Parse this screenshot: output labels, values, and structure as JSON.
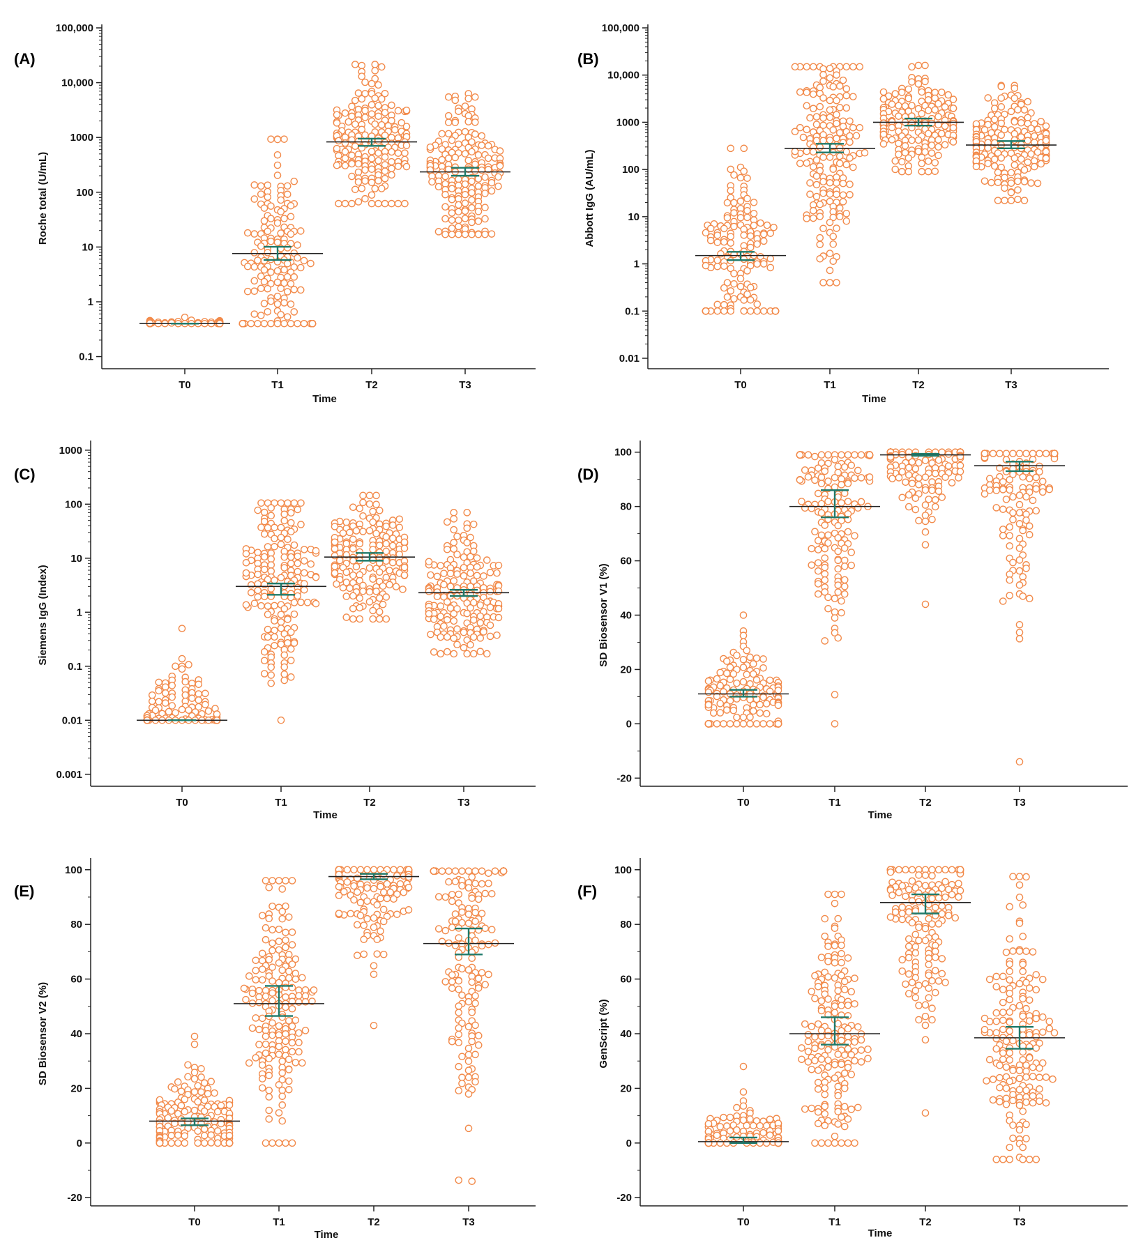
{
  "colors": {
    "point": "#f28a4a",
    "median": "#222222",
    "ci": "#1f7a6a",
    "axis": "#222222"
  },
  "chart_data": [
    {
      "panel": "(A)",
      "type": "scatter",
      "scale": "log",
      "ylabel": "Roche total (U/mL)",
      "xlabel": "Time",
      "categories": [
        "T0",
        "T1",
        "T2",
        "T3"
      ],
      "ylim": [
        0.06,
        100000
      ],
      "yticks": [
        0.1,
        1,
        10,
        100,
        1000,
        10000,
        100000
      ],
      "ytick_labels": [
        "0.1",
        "1",
        "10",
        "100",
        "1000",
        "10,000",
        "100,000"
      ],
      "groups": [
        {
          "category": "T0",
          "median": 0.4,
          "ci": [
            0.4,
            0.4
          ],
          "min": 0.4,
          "max": 0.52,
          "floor": 0.4
        },
        {
          "category": "T1",
          "median": 7.6,
          "ci": [
            5.8,
            10.1
          ],
          "min": 0.4,
          "max": 930,
          "floor": 0.4
        },
        {
          "category": "T2",
          "median": 830,
          "ci": [
            700,
            950
          ],
          "min": 62,
          "max": 21500,
          "floor": null
        },
        {
          "category": "T3",
          "median": 235,
          "ci": [
            200,
            280
          ],
          "min": 17,
          "max": 6300,
          "floor": null
        }
      ]
    },
    {
      "panel": "(B)",
      "type": "scatter",
      "scale": "log",
      "ylabel": "Abbott IgG (AU/mL)",
      "xlabel": "Time",
      "categories": [
        "T0",
        "T1",
        "T2",
        "T3"
      ],
      "ylim": [
        0.006,
        100000
      ],
      "yticks": [
        0.01,
        0.1,
        1,
        10,
        100,
        1000,
        10000,
        100000
      ],
      "ytick_labels": [
        "0.01",
        "0.1",
        "1",
        "10",
        "100",
        "1000",
        "10,000",
        "100,000"
      ],
      "groups": [
        {
          "category": "T0",
          "median": 1.5,
          "ci": [
            1.2,
            1.8
          ],
          "min": 0.1,
          "max": 280,
          "floor": 0.1
        },
        {
          "category": "T1",
          "median": 280,
          "ci": [
            230,
            350
          ],
          "min": 0.4,
          "max": 15000,
          "floor": null
        },
        {
          "category": "T2",
          "median": 1000,
          "ci": [
            850,
            1200
          ],
          "min": 90,
          "max": 16000,
          "floor": null
        },
        {
          "category": "T3",
          "median": 330,
          "ci": [
            280,
            400
          ],
          "min": 22,
          "max": 6000,
          "floor": null
        }
      ]
    },
    {
      "panel": "(C)",
      "type": "scatter",
      "scale": "log",
      "ylabel": "Siemens IgG (Index)",
      "xlabel": "Time",
      "categories": [
        "T0",
        "T1",
        "T2",
        "T3"
      ],
      "ylim": [
        0.0006,
        1300
      ],
      "yticks": [
        0.001,
        0.01,
        0.1,
        1,
        10,
        100,
        1000
      ],
      "ytick_labels": [
        "0.001",
        "0.01",
        "0.1",
        "1",
        "10",
        "100",
        "1000"
      ],
      "groups": [
        {
          "category": "T0",
          "median": 0.01,
          "ci": [
            0.01,
            0.01
          ],
          "min": 0.01,
          "max": 0.5,
          "floor": 0.01
        },
        {
          "category": "T1",
          "median": 3.0,
          "ci": [
            2.1,
            3.4
          ],
          "min": 0.01,
          "max": 105,
          "floor": null
        },
        {
          "category": "T2",
          "median": 10.5,
          "ci": [
            9.0,
            12.5
          ],
          "min": 0.75,
          "max": 145,
          "floor": null
        },
        {
          "category": "T3",
          "median": 2.3,
          "ci": [
            2.0,
            2.6
          ],
          "min": 0.17,
          "max": 70,
          "floor": null
        }
      ]
    },
    {
      "panel": "(D)",
      "type": "scatter",
      "scale": "linear",
      "ylabel": "SD Biosensor V1 (%)",
      "xlabel": "Time",
      "categories": [
        "T0",
        "T1",
        "T2",
        "T3"
      ],
      "ylim": [
        -23,
        103
      ],
      "yticks": [
        -20,
        0,
        20,
        40,
        60,
        80,
        100
      ],
      "ytick_labels": [
        "-20",
        "0",
        "20",
        "40",
        "60",
        "80",
        "100"
      ],
      "groups": [
        {
          "category": "T0",
          "median": 11,
          "ci": [
            10,
            12.5
          ],
          "min": 0,
          "max": 40,
          "floor": 0
        },
        {
          "category": "T1",
          "median": 80,
          "ci": [
            76,
            86
          ],
          "min": 0,
          "max": 99,
          "floor": null
        },
        {
          "category": "T2",
          "median": 99,
          "ci": [
            98.7,
            99.4
          ],
          "min": 44,
          "max": 100,
          "floor": null
        },
        {
          "category": "T3",
          "median": 95,
          "ci": [
            93,
            96.5
          ],
          "min": -14,
          "max": 99.5,
          "floor": null
        }
      ]
    },
    {
      "panel": "(E)",
      "type": "scatter",
      "scale": "linear",
      "ylabel": "SD Biosensor V2 (%)",
      "xlabel": "Time",
      "categories": [
        "T0",
        "T1",
        "T2",
        "T3"
      ],
      "ylim": [
        -23,
        103
      ],
      "yticks": [
        -20,
        0,
        20,
        40,
        60,
        80,
        100
      ],
      "ytick_labels": [
        "-20",
        "0",
        "20",
        "40",
        "60",
        "80",
        "100"
      ],
      "groups": [
        {
          "category": "T0",
          "median": 8,
          "ci": [
            6.5,
            9
          ],
          "min": 0,
          "max": 39,
          "floor": null
        },
        {
          "category": "T1",
          "median": 51,
          "ci": [
            46.5,
            57.5
          ],
          "min": 0,
          "max": 96,
          "floor": null
        },
        {
          "category": "T2",
          "median": 97.5,
          "ci": [
            96.5,
            98.5
          ],
          "min": 43,
          "max": 100,
          "floor": null
        },
        {
          "category": "T3",
          "median": 73,
          "ci": [
            69,
            78.5
          ],
          "min": -14,
          "max": 99.5,
          "floor": null
        }
      ]
    },
    {
      "panel": "(F)",
      "type": "scatter",
      "scale": "linear",
      "ylabel": "GenScript (%)",
      "xlabel": "Time",
      "categories": [
        "T0",
        "T1",
        "T2",
        "T3"
      ],
      "ylim": [
        -23,
        103
      ],
      "yticks": [
        -20,
        0,
        20,
        40,
        60,
        80,
        100
      ],
      "ytick_labels": [
        "-20",
        "0",
        "20",
        "40",
        "60",
        "80",
        "100"
      ],
      "groups": [
        {
          "category": "T0",
          "median": 0.5,
          "ci": [
            0,
            2
          ],
          "min": 0,
          "max": 28,
          "floor": 0
        },
        {
          "category": "T1",
          "median": 40,
          "ci": [
            36,
            46
          ],
          "min": 0,
          "max": 91,
          "floor": null
        },
        {
          "category": "T2",
          "median": 88,
          "ci": [
            84,
            91
          ],
          "min": 11,
          "max": 100,
          "floor": null
        },
        {
          "category": "T3",
          "median": 38.5,
          "ci": [
            34.5,
            42.5
          ],
          "min": -6,
          "max": 97.5,
          "floor": null
        }
      ]
    }
  ]
}
